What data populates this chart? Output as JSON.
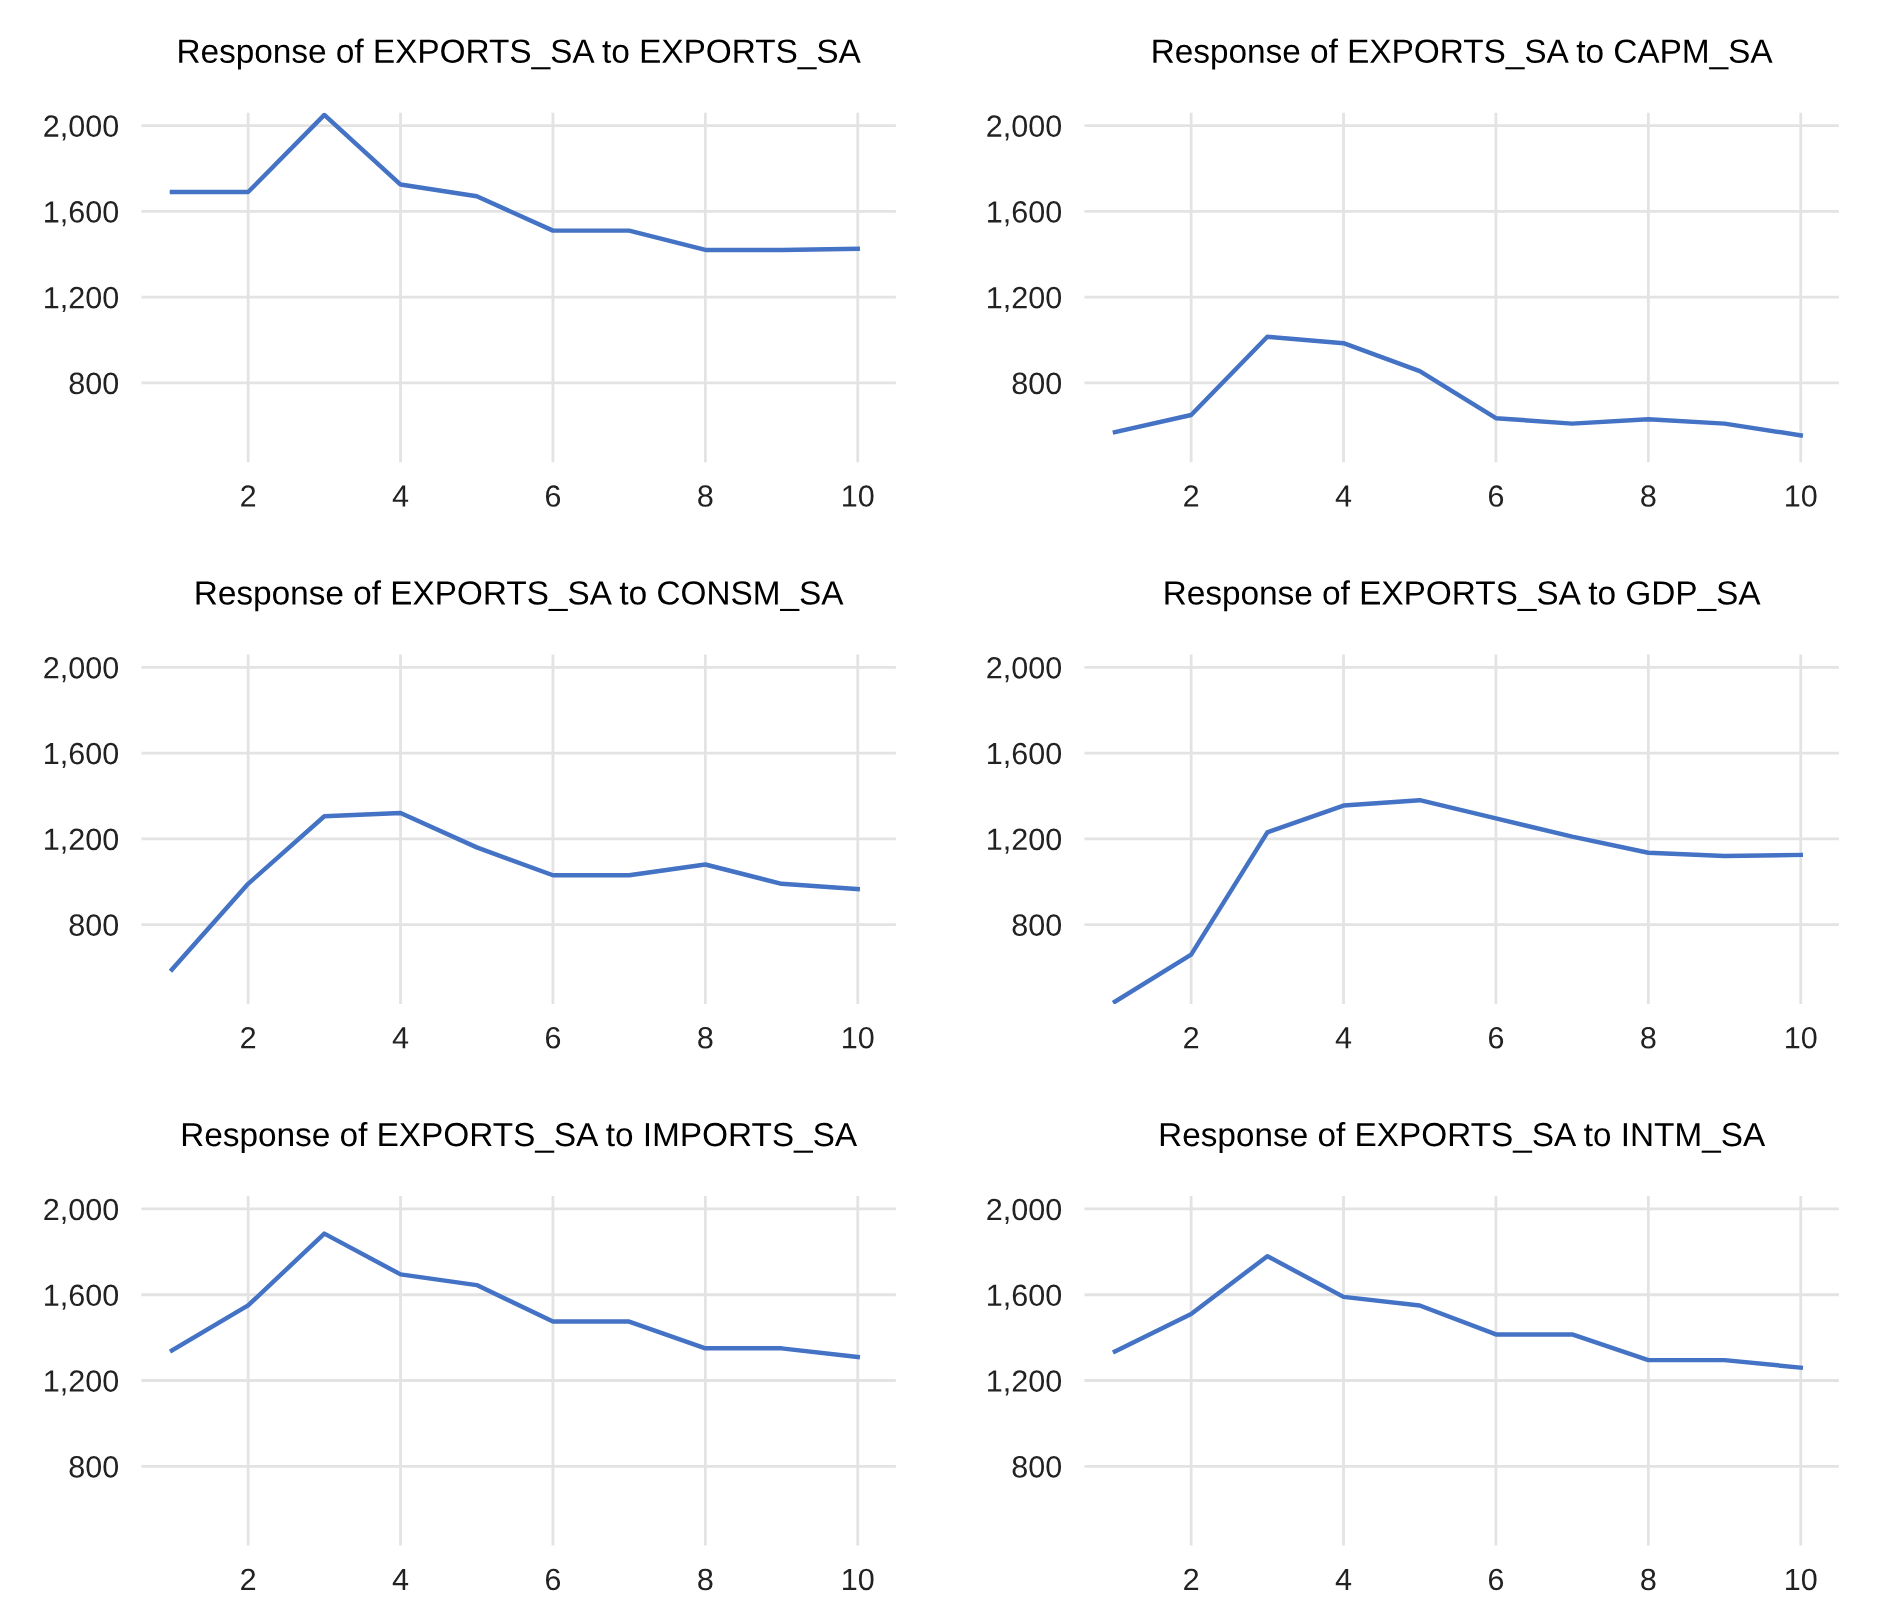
{
  "chart_data": [
    {
      "type": "line",
      "title": "Response of EXPORTS_SA to EXPORTS_SA",
      "x": [
        1,
        2,
        3,
        4,
        5,
        6,
        7,
        8,
        9,
        10
      ],
      "series": [
        {
          "color": "#4472c4",
          "values": [
            1690,
            1690,
            2050,
            1725,
            1670,
            1510,
            1510,
            1420,
            1420,
            1425
          ]
        }
      ],
      "xlim": [
        0.6,
        10.5
      ],
      "xticks": [
        2,
        4,
        6,
        8,
        10
      ],
      "ylim": [
        430,
        2060
      ],
      "yticks": [
        {
          "value": 800,
          "label": "800"
        },
        {
          "value": 1200,
          "label": "1,200"
        },
        {
          "value": 1600,
          "label": "1,600"
        },
        {
          "value": 2000,
          "label": "2,000"
        }
      ],
      "grid": true
    },
    {
      "type": "line",
      "title": "Response of EXPORTS_SA to CAPM_SA",
      "x": [
        1,
        2,
        3,
        4,
        5,
        6,
        7,
        8,
        9,
        10
      ],
      "series": [
        {
          "color": "#4472c4",
          "values": [
            570,
            650,
            1015,
            985,
            855,
            635,
            610,
            630,
            610,
            555
          ]
        }
      ],
      "xlim": [
        0.6,
        10.5
      ],
      "xticks": [
        2,
        4,
        6,
        8,
        10
      ],
      "ylim": [
        430,
        2060
      ],
      "yticks": [
        {
          "value": 800,
          "label": "800"
        },
        {
          "value": 1200,
          "label": "1,200"
        },
        {
          "value": 1600,
          "label": "1,600"
        },
        {
          "value": 2000,
          "label": "2,000"
        }
      ],
      "grid": true
    },
    {
      "type": "line",
      "title": "Response of EXPORTS_SA to CONSM_SA",
      "x": [
        1,
        2,
        3,
        4,
        5,
        6,
        7,
        8,
        9,
        10
      ],
      "series": [
        {
          "color": "#4472c4",
          "values": [
            590,
            990,
            1305,
            1320,
            1160,
            1030,
            1030,
            1080,
            990,
            965
          ]
        }
      ],
      "xlim": [
        0.6,
        10.5
      ],
      "xticks": [
        2,
        4,
        6,
        8,
        10
      ],
      "ylim": [
        430,
        2060
      ],
      "yticks": [
        {
          "value": 800,
          "label": "800"
        },
        {
          "value": 1200,
          "label": "1,200"
        },
        {
          "value": 1600,
          "label": "1,600"
        },
        {
          "value": 2000,
          "label": "2,000"
        }
      ],
      "grid": true
    },
    {
      "type": "line",
      "title": "Response of EXPORTS_SA to GDP_SA",
      "x": [
        1,
        2,
        3,
        4,
        5,
        6,
        7,
        8,
        9,
        10
      ],
      "series": [
        {
          "color": "#4472c4",
          "values": [
            440,
            660,
            1230,
            1355,
            1380,
            1295,
            1210,
            1135,
            1120,
            1125
          ]
        }
      ],
      "xlim": [
        0.6,
        10.5
      ],
      "xticks": [
        2,
        4,
        6,
        8,
        10
      ],
      "ylim": [
        430,
        2060
      ],
      "yticks": [
        {
          "value": 800,
          "label": "800"
        },
        {
          "value": 1200,
          "label": "1,200"
        },
        {
          "value": 1600,
          "label": "1,600"
        },
        {
          "value": 2000,
          "label": "2,000"
        }
      ],
      "grid": true
    },
    {
      "type": "line",
      "title": "Response of EXPORTS_SA to IMPORTS_SA",
      "x": [
        1,
        2,
        3,
        4,
        5,
        6,
        7,
        8,
        9,
        10
      ],
      "series": [
        {
          "color": "#4472c4",
          "values": [
            1340,
            1550,
            1885,
            1695,
            1645,
            1475,
            1475,
            1350,
            1350,
            1310
          ]
        }
      ],
      "xlim": [
        0.6,
        10.5
      ],
      "xticks": [
        2,
        4,
        6,
        8,
        10
      ],
      "ylim": [
        430,
        2060
      ],
      "yticks": [
        {
          "value": 800,
          "label": "800"
        },
        {
          "value": 1200,
          "label": "1,200"
        },
        {
          "value": 1600,
          "label": "1,600"
        },
        {
          "value": 2000,
          "label": "2,000"
        }
      ],
      "grid": true
    },
    {
      "type": "line",
      "title": "Response of EXPORTS_SA to INTM_SA",
      "x": [
        1,
        2,
        3,
        4,
        5,
        6,
        7,
        8,
        9,
        10
      ],
      "series": [
        {
          "color": "#4472c4",
          "values": [
            1335,
            1510,
            1780,
            1590,
            1550,
            1415,
            1415,
            1295,
            1295,
            1260
          ]
        }
      ],
      "xlim": [
        0.6,
        10.5
      ],
      "xticks": [
        2,
        4,
        6,
        8,
        10
      ],
      "ylim": [
        430,
        2060
      ],
      "yticks": [
        {
          "value": 800,
          "label": "800"
        },
        {
          "value": 1200,
          "label": "1,200"
        },
        {
          "value": 1600,
          "label": "1,600"
        },
        {
          "value": 2000,
          "label": "2,000"
        }
      ],
      "grid": true
    }
  ]
}
